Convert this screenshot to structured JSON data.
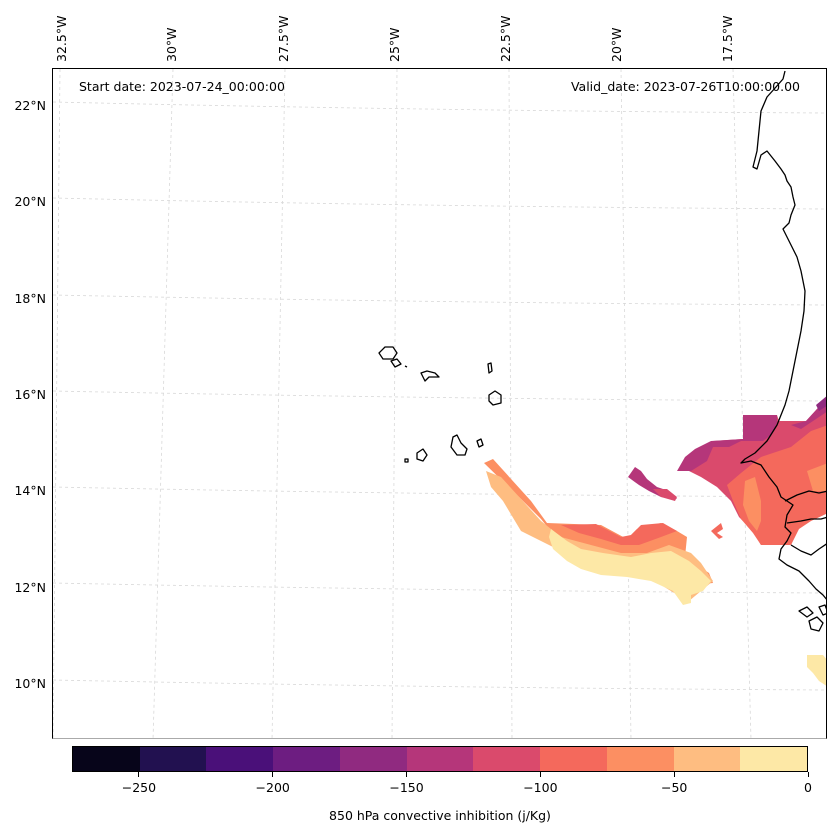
{
  "map": {
    "start_date_label": "Start date: 2023-07-24_00:00:00",
    "valid_date_label": "Valid_date: 2023-07-26T10:00:00.00",
    "lon_labels": [
      "32.5°W",
      "30°W",
      "27.5°W",
      "25°W",
      "22.5°W",
      "20°W",
      "17.5°W"
    ],
    "lat_labels": [
      "22°N",
      "20°N",
      "18°N",
      "16°N",
      "14°N",
      "12°N",
      "10°N"
    ],
    "features": [
      "Cape Verde islands",
      "West African coastline (Mauritania, Senegal, Gambia, Guinea-Bissau)"
    ]
  },
  "colorbar": {
    "title": "850 hPa convective inhibition (j/Kg)",
    "range": [
      -275,
      0
    ],
    "boundaries": [
      -275,
      -250,
      -225,
      -200,
      -175,
      -150,
      -125,
      -100,
      -75,
      -50,
      -25,
      0
    ],
    "colors": [
      "#07051a",
      "#221150",
      "#4a1079",
      "#6d1d81",
      "#902a80",
      "#b5367a",
      "#da4a6c",
      "#f4695c",
      "#fc8f62",
      "#febd81",
      "#fde8a6"
    ],
    "tick_labels": [
      "−250",
      "−200",
      "−150",
      "−100",
      "−50",
      "0"
    ],
    "tick_values": [
      -250,
      -200,
      -150,
      -100,
      -50,
      0
    ]
  }
}
